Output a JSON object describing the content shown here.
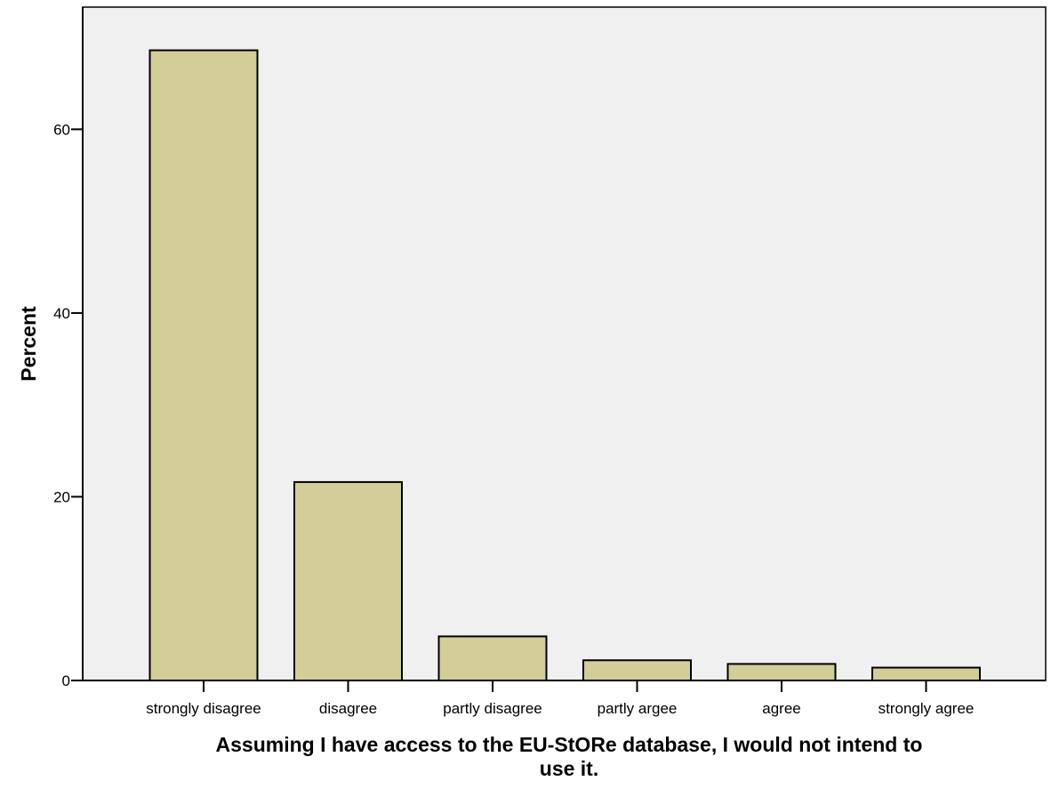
{
  "chart_data": {
    "type": "bar",
    "title": "",
    "categories": [
      "strongly disagree",
      "disagree",
      "partly disagree",
      "partly argee",
      "agree",
      "strongly agree"
    ],
    "values": [
      68.6,
      21.6,
      4.8,
      2.2,
      1.8,
      1.4
    ],
    "xlabel_lines": [
      "Assuming I have access to the EU-StORe database, I would not intend to",
      "use it."
    ],
    "ylabel": "Percent",
    "yticks": [
      0,
      20,
      40,
      60
    ],
    "ylim": [
      0,
      73.3
    ],
    "grid": false,
    "colors": {
      "plot_background": "#f0f0f0",
      "bar_fill": "#d3cd98",
      "bar_stroke": "#000000",
      "axis": "#000000"
    }
  }
}
